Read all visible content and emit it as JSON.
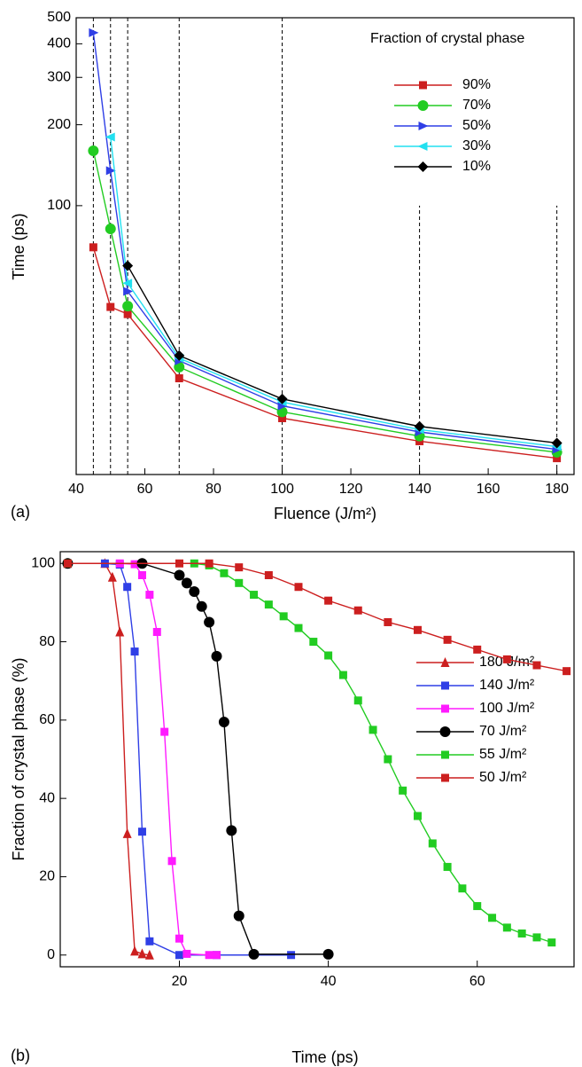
{
  "chart_data": [
    {
      "type": "line",
      "panel_label": "(a)",
      "xlabel": "Fluence (J/m²)",
      "ylabel": "Time (ps)",
      "yscale": "log",
      "xlim": [
        40,
        185
      ],
      "ylim": [
        10,
        500
      ],
      "xticks": [
        40,
        60,
        80,
        100,
        120,
        140,
        160,
        180
      ],
      "yticks": [
        100,
        200,
        300,
        400,
        500
      ],
      "vlines": [
        45,
        50,
        55,
        70,
        100,
        140,
        180
      ],
      "vline_tops": [
        500,
        500,
        500,
        500,
        500,
        100,
        100
      ],
      "legend_title": "Fraction of crystal phase",
      "legend": "upper right",
      "x": [
        45,
        50,
        55,
        70,
        100,
        140,
        180
      ],
      "series": [
        {
          "name": "90%",
          "color": "#cc1f1f",
          "marker": "square",
          "values": [
            70,
            42,
            39.5,
            22.8,
            16.2,
            13.3,
            11.5
          ]
        },
        {
          "name": "70%",
          "color": "#22cc22",
          "marker": "circle",
          "values": [
            160,
            82,
            42.3,
            25.1,
            17.1,
            13.9,
            12.1
          ]
        },
        {
          "name": "50%",
          "color": "#2f3fe6",
          "marker": "triangle-right",
          "values": [
            440,
            135,
            48,
            26.5,
            18,
            14.4,
            12.4
          ]
        },
        {
          "name": "30%",
          "color": "#22e0f0",
          "marker": "triangle-left",
          "values": [
            null,
            180,
            51.5,
            27.1,
            18.6,
            14.7,
            12.7
          ]
        },
        {
          "name": "10%",
          "color": "#000000",
          "marker": "diamond",
          "values": [
            null,
            null,
            59.8,
            27.7,
            19.1,
            15.1,
            13.1
          ]
        }
      ]
    },
    {
      "type": "line",
      "panel_label": "(b)",
      "xlabel": "Time (ps)",
      "ylabel": "Fraction of crystal phase (%)",
      "xlim": [
        4,
        73
      ],
      "ylim": [
        -3,
        103
      ],
      "xticks": [
        20,
        40,
        60
      ],
      "yticks": [
        0,
        20,
        40,
        60,
        80,
        100
      ],
      "legend": "center right",
      "series": [
        {
          "name": "180 J/m²",
          "color": "#cc1f1f",
          "marker": "triangle",
          "x": [
            5,
            10,
            11,
            12,
            13,
            14,
            15,
            16
          ],
          "values": [
            100,
            100,
            96.5,
            82.5,
            31,
            1,
            0.3,
            0
          ]
        },
        {
          "name": "140 J/m²",
          "color": "#2f3fe6",
          "marker": "square",
          "x": [
            5,
            10,
            12,
            13,
            14,
            15,
            16,
            20,
            25,
            35
          ],
          "values": [
            100,
            100,
            99.7,
            94,
            77.5,
            31.5,
            3.5,
            0,
            0,
            0
          ]
        },
        {
          "name": "100 J/m²",
          "color": "#ff1aff",
          "marker": "square",
          "x": [
            5,
            12,
            14,
            15,
            16,
            17,
            18,
            19,
            20,
            21,
            24,
            25
          ],
          "values": [
            100,
            100,
            99.8,
            97,
            92,
            82.5,
            57,
            24,
            4.2,
            0.3,
            0,
            0
          ]
        },
        {
          "name": "70 J/m²",
          "color": "#000000",
          "marker": "circle",
          "x": [
            5,
            15,
            20,
            21,
            22,
            23,
            24,
            25,
            26,
            27,
            28,
            30,
            40
          ],
          "values": [
            100,
            100,
            97,
            95,
            92.8,
            89,
            85,
            76.3,
            59.5,
            31.8,
            10,
            0.2,
            0.2
          ]
        },
        {
          "name": "55 J/m²",
          "color": "#22cc22",
          "marker": "square",
          "x": [
            5,
            22,
            24,
            26,
            28,
            30,
            32,
            34,
            36,
            38,
            40,
            42,
            44,
            46,
            48,
            50,
            52,
            54,
            56,
            58,
            60,
            62,
            64,
            66,
            68,
            70
          ],
          "values": [
            100,
            100,
            99.5,
            97.5,
            95,
            92,
            89.5,
            86.5,
            83.5,
            80,
            76.5,
            71.5,
            65,
            57.5,
            50,
            42,
            35.5,
            28.5,
            22.5,
            17,
            12.5,
            9.5,
            7,
            5.5,
            4.5,
            3.2
          ]
        },
        {
          "name": "50 J/m²",
          "color": "#cc1f1f",
          "marker": "square",
          "x": [
            5,
            20,
            24,
            28,
            32,
            36,
            40,
            44,
            48,
            52,
            56,
            60,
            64,
            68,
            72
          ],
          "values": [
            100,
            100,
            100,
            99,
            97,
            94,
            90.5,
            88,
            85,
            83,
            80.5,
            78,
            75.5,
            74,
            72.5
          ]
        }
      ]
    }
  ]
}
